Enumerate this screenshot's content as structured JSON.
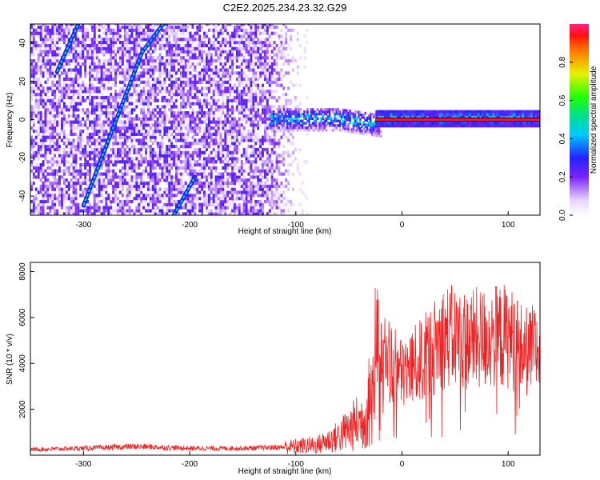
{
  "chart_data": [
    {
      "type": "heatmap",
      "title": "C2E2.2025.234.23.32.G29",
      "xlabel": "Height of straight line (km)",
      "ylabel": "Frequency (Hz)",
      "xlim": [
        -350,
        130
      ],
      "ylim": [
        -50,
        50
      ],
      "xticks": [
        -300,
        -200,
        -100,
        0,
        100
      ],
      "yticks": [
        -40,
        -20,
        0,
        20,
        40
      ],
      "colorbar": {
        "label": "Normalized spectral amplitude",
        "range": [
          0,
          1
        ],
        "ticks": [
          "0.0",
          "0.2",
          "0.4",
          "0.6",
          "0.8"
        ]
      },
      "features": [
        {
          "name": "stable carrier line",
          "x_range": [
            -25,
            130
          ],
          "frequency_hz": 0,
          "amplitude": 0.95
        },
        {
          "name": "diffuse band near zero",
          "x_range": [
            -125,
            -20
          ],
          "frequency_hz": 0,
          "amplitude": 0.45
        },
        {
          "name": "slanted trace A",
          "points": [
            [
              -300,
              -45
            ],
            [
              -245,
              35
            ],
            [
              -225,
              50
            ]
          ]
        },
        {
          "name": "slanted trace B",
          "points": [
            [
              -325,
              25
            ],
            [
              -305,
              50
            ]
          ]
        },
        {
          "name": "slanted trace C",
          "points": [
            [
              -215,
              -50
            ],
            [
              -195,
              -30
            ]
          ]
        },
        {
          "name": "noise region",
          "x_range": [
            -350,
            -100
          ],
          "frequency_range": [
            -50,
            50
          ]
        }
      ]
    },
    {
      "type": "line",
      "xlabel": "Height of straight line (km)",
      "ylabel": "SNR (10 * v/v)",
      "xlim": [
        -350,
        130
      ],
      "ylim": [
        0,
        8400
      ],
      "xticks": [
        -300,
        -200,
        -100,
        0,
        100
      ],
      "yticks": [
        2000,
        4000,
        6000,
        8000
      ],
      "series": [
        {
          "name": "SNR",
          "color": "#ee2222",
          "x": [
            -350,
            -300,
            -250,
            -200,
            -150,
            -110,
            -80,
            -60,
            -45,
            -35,
            -25,
            -20,
            -10,
            0,
            20,
            40,
            60,
            80,
            100,
            115,
            130
          ],
          "values": [
            250,
            300,
            380,
            300,
            300,
            350,
            450,
            800,
            1300,
            1600,
            3400,
            4500,
            4000,
            3500,
            4200,
            5200,
            5000,
            5100,
            5200,
            4500,
            4600
          ]
        }
      ]
    }
  ]
}
